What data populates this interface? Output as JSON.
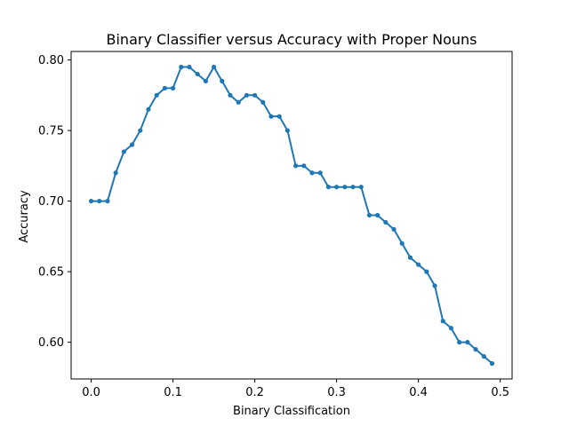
{
  "chart_data": {
    "type": "line",
    "title": "Binary Classifier versus Accuracy with Proper Nouns",
    "xlabel": "Binary Classification",
    "ylabel": "Accuracy",
    "xlim": [
      -0.0245,
      0.5145
    ],
    "ylim": [
      0.574,
      0.806
    ],
    "xticks": [
      0.0,
      0.1,
      0.2,
      0.3,
      0.4,
      0.5
    ],
    "xtick_labels": [
      "0.0",
      "0.1",
      "0.2",
      "0.3",
      "0.4",
      "0.5"
    ],
    "yticks": [
      0.6,
      0.65,
      0.7,
      0.75,
      0.8
    ],
    "ytick_labels": [
      "0.60",
      "0.65",
      "0.70",
      "0.75",
      "0.80"
    ],
    "grid": false,
    "legend": "none",
    "color": "#1f77b4",
    "marker": "circle",
    "series": [
      {
        "x": [
          0.0,
          0.01,
          0.02,
          0.03,
          0.04,
          0.05,
          0.06,
          0.07,
          0.08,
          0.09,
          0.1,
          0.11,
          0.12,
          0.13,
          0.14,
          0.15,
          0.16,
          0.17,
          0.18,
          0.19,
          0.2,
          0.21,
          0.22,
          0.23,
          0.24,
          0.25,
          0.26,
          0.27,
          0.28,
          0.29,
          0.3,
          0.31,
          0.32,
          0.33,
          0.34,
          0.35,
          0.36,
          0.37,
          0.38,
          0.39,
          0.4,
          0.41,
          0.42,
          0.43,
          0.44,
          0.45,
          0.46,
          0.47,
          0.48,
          0.49
        ],
        "y": [
          0.7,
          0.7,
          0.7,
          0.72,
          0.735,
          0.74,
          0.75,
          0.765,
          0.775,
          0.78,
          0.78,
          0.795,
          0.795,
          0.79,
          0.785,
          0.795,
          0.785,
          0.775,
          0.77,
          0.775,
          0.775,
          0.77,
          0.76,
          0.76,
          0.75,
          0.725,
          0.725,
          0.72,
          0.72,
          0.71,
          0.71,
          0.71,
          0.71,
          0.71,
          0.69,
          0.69,
          0.685,
          0.68,
          0.67,
          0.66,
          0.655,
          0.65,
          0.64,
          0.615,
          0.61,
          0.6,
          0.6,
          0.595,
          0.59,
          0.585
        ]
      }
    ]
  }
}
